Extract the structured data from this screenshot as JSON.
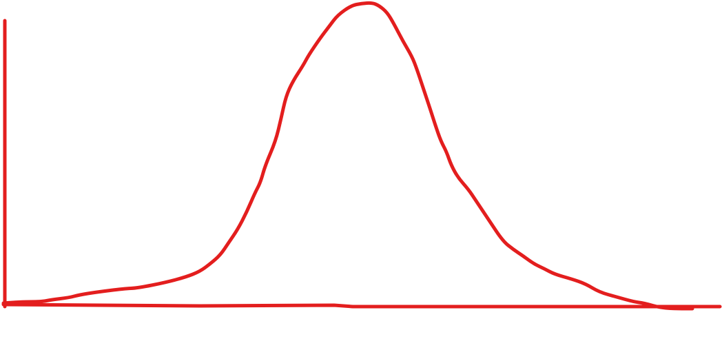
{
  "sketch": {
    "stroke_color": "#e31e1e",
    "shape": "bell-curve"
  }
}
